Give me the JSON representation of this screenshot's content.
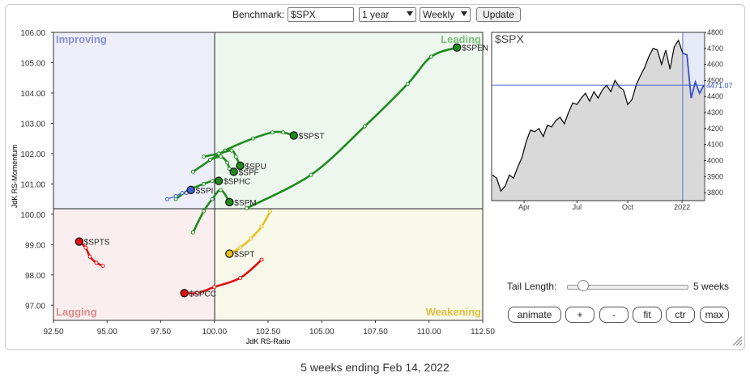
{
  "toolbar": {
    "benchmark_label": "Benchmark:",
    "benchmark_value": "$SPX",
    "period_value": "1 year",
    "frequency_value": "Weekly",
    "update_label": "Update"
  },
  "quadrants": {
    "improving": "Improving",
    "leading": "Leading",
    "lagging": "Lagging",
    "weakening": "Weakening"
  },
  "colors": {
    "improving_bg": "#eeeefa",
    "leading_bg": "#eef7ee",
    "lagging_bg": "#fbeeee",
    "weakening_bg": "#f9f9ea",
    "improving_text": "#8a90d8",
    "leading_text": "#7cc27c",
    "lagging_text": "#e08c8c",
    "weakening_text": "#e0c040",
    "green": "#1e8c1e",
    "red": "#e01010",
    "blue": "#3a5fcd",
    "yellow": "#e8c020"
  },
  "chart_data": [
    {
      "type": "scatter",
      "title": "",
      "xlabel": "JdK RS-Ratio",
      "ylabel": "JdK RS-Momentum",
      "xlim": [
        92.5,
        112.5
      ],
      "ylim": [
        96.5,
        106.0
      ],
      "xticks": [
        "92.50",
        "95.00",
        "97.50",
        "100.00",
        "102.50",
        "105.00",
        "107.50",
        "110.00",
        "112.50"
      ],
      "yticks": [
        "97.00",
        "98.00",
        "99.00",
        "100.00",
        "101.00",
        "102.00",
        "103.00",
        "104.00",
        "105.00",
        "106.00"
      ],
      "grid": false,
      "series": [
        {
          "name": "$SPEN",
          "color": "green",
          "points": [
            [
              101.5,
              100.2
            ],
            [
              104.5,
              101.3
            ],
            [
              107.0,
              102.9
            ],
            [
              109.0,
              104.3
            ],
            [
              110.1,
              105.2
            ],
            [
              111.3,
              105.5
            ]
          ]
        },
        {
          "name": "$SPST",
          "color": "green",
          "points": [
            [
              99.0,
              101.4
            ],
            [
              100.5,
              102.1
            ],
            [
              101.8,
              102.5
            ],
            [
              102.7,
              102.7
            ],
            [
              103.2,
              102.7
            ],
            [
              103.7,
              102.6
            ]
          ]
        },
        {
          "name": "$SPU",
          "color": "green",
          "points": [
            [
              99.5,
              101.9
            ],
            [
              100.2,
              102.0
            ],
            [
              100.8,
              102.1
            ],
            [
              101.0,
              101.9
            ],
            [
              101.2,
              101.6
            ]
          ]
        },
        {
          "name": "$SPF",
          "color": "green",
          "points": [
            [
              99.8,
              101.8
            ],
            [
              100.3,
              101.9
            ],
            [
              100.6,
              101.7
            ],
            [
              100.7,
              101.5
            ],
            [
              100.9,
              101.4
            ]
          ]
        },
        {
          "name": "$SPHC",
          "color": "green",
          "points": [
            [
              98.2,
              100.5
            ],
            [
              98.8,
              100.8
            ],
            [
              99.5,
              101.0
            ],
            [
              99.9,
              101.1
            ],
            [
              100.2,
              101.1
            ]
          ]
        },
        {
          "name": "$SPM",
          "color": "green",
          "points": [
            [
              99.0,
              99.4
            ],
            [
              99.5,
              100.1
            ],
            [
              99.9,
              100.5
            ],
            [
              100.3,
              100.8
            ],
            [
              100.7,
              100.4
            ]
          ]
        },
        {
          "name": "$SPI",
          "color": "blue",
          "points": [
            [
              97.8,
              100.5
            ],
            [
              98.2,
              100.6
            ],
            [
              98.5,
              100.7
            ],
            [
              98.7,
              100.7
            ],
            [
              98.9,
              100.8
            ]
          ]
        },
        {
          "name": "$SPT",
          "color": "yellow",
          "points": [
            [
              102.6,
              100.1
            ],
            [
              102.2,
              99.6
            ],
            [
              101.7,
              99.2
            ],
            [
              101.2,
              98.9
            ],
            [
              100.7,
              98.7
            ]
          ]
        },
        {
          "name": "$SPTS",
          "color": "red",
          "points": [
            [
              94.8,
              98.3
            ],
            [
              94.5,
              98.4
            ],
            [
              94.2,
              98.6
            ],
            [
              94.0,
              98.9
            ],
            [
              93.7,
              99.1
            ]
          ]
        },
        {
          "name": "$SPCC",
          "color": "red",
          "points": [
            [
              102.2,
              98.5
            ],
            [
              101.2,
              97.9
            ],
            [
              100.0,
              97.6
            ],
            [
              99.2,
              97.4
            ],
            [
              98.6,
              97.4
            ]
          ]
        }
      ]
    },
    {
      "type": "area",
      "title": "$SPX",
      "x_labels": [
        "Apr",
        "Jul",
        "Oct",
        "2022"
      ],
      "yticks": [
        "3800",
        "3900",
        "4000",
        "4100",
        "4200",
        "4300",
        "4400",
        "4500",
        "4600",
        "4700",
        "4800"
      ],
      "ylim": [
        3750,
        4800
      ],
      "last_value_label": "4471.07",
      "highlight_weeks": 5,
      "values": [
        3910,
        3890,
        3810,
        3840,
        3910,
        3890,
        3960,
        4020,
        4120,
        4190,
        4180,
        4200,
        4150,
        4220,
        4210,
        4250,
        4270,
        4230,
        4300,
        4360,
        4350,
        4390,
        4420,
        4370,
        4430,
        4390,
        4440,
        4470,
        4430,
        4500,
        4460,
        4440,
        4350,
        4380,
        4470,
        4530,
        4580,
        4650,
        4700,
        4690,
        4600,
        4690,
        4570,
        4710,
        4750,
        4670,
        4660,
        4390,
        4490,
        4420,
        4471
      ]
    }
  ],
  "controls": {
    "tail_label": "Tail Length:",
    "tail_value": "5 weeks",
    "animate": "animate",
    "plus": "+",
    "minus": "-",
    "fit": "fit",
    "ctr": "ctr",
    "max": "max"
  },
  "footer": "5 weeks ending Feb 14, 2022"
}
